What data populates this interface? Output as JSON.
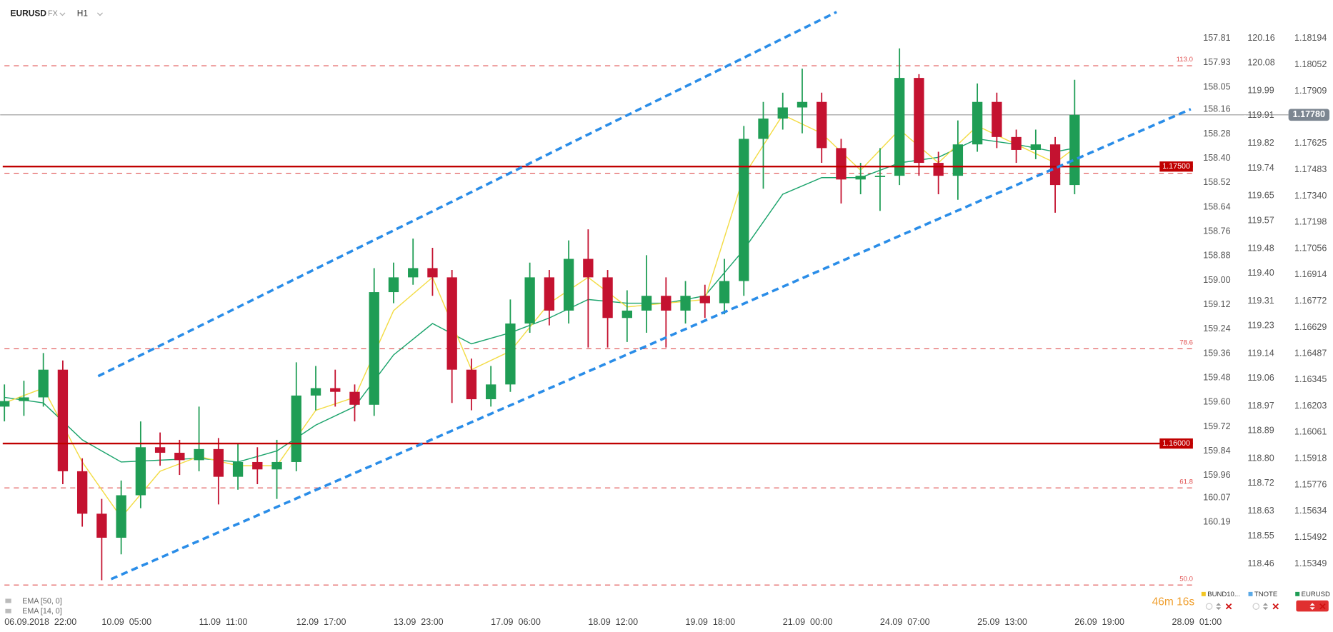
{
  "header": {
    "symbol": "EURUSD",
    "market": "FX",
    "interval": "H1"
  },
  "chart_data": {
    "type": "candlestick",
    "series": [
      {
        "name": "EURUSD",
        "up_color": "#1f9d55",
        "down_color": "#c41230",
        "x": [
          0,
          6,
          12,
          18,
          24,
          30,
          36,
          42,
          48,
          54,
          60,
          66,
          72,
          78,
          84,
          90,
          96,
          102,
          108,
          114,
          120,
          126,
          132,
          138,
          144,
          150,
          156,
          162,
          168,
          174,
          180,
          186,
          192,
          198,
          204,
          210,
          216,
          222,
          228,
          234,
          240,
          246,
          252,
          258,
          264,
          270,
          276,
          282,
          288,
          294,
          300,
          306,
          312,
          318,
          324,
          330
        ],
        "open": [
          1.162,
          1.1623,
          1.1625,
          1.164,
          1.1585,
          1.1562,
          1.1549,
          1.1572,
          1.1598,
          1.1595,
          1.1591,
          1.1597,
          1.1582,
          1.159,
          1.1586,
          1.159,
          1.1626,
          1.163,
          1.1628,
          1.1621,
          1.1682,
          1.169,
          1.1695,
          1.169,
          1.164,
          1.1624,
          1.1632,
          1.1665,
          1.169,
          1.1672,
          1.17,
          1.169,
          1.1668,
          1.1672,
          1.168,
          1.1672,
          1.168,
          1.1676,
          1.1688,
          1.1765,
          1.1776,
          1.1782,
          1.1785,
          1.176,
          1.1743,
          1.1745,
          1.1745,
          1.1798,
          1.1752,
          1.1745,
          1.1762,
          1.1785,
          1.1766,
          1.1759,
          1.1762,
          1.174
        ],
        "high": [
          1.1632,
          1.1634,
          1.1649,
          1.1645,
          1.1592,
          1.157,
          1.158,
          1.1612,
          1.1606,
          1.1602,
          1.162,
          1.1603,
          1.16,
          1.1598,
          1.1602,
          1.1644,
          1.1642,
          1.164,
          1.1632,
          1.1695,
          1.1698,
          1.1711,
          1.1706,
          1.1694,
          1.1646,
          1.1642,
          1.1678,
          1.1698,
          1.1694,
          1.171,
          1.1716,
          1.1694,
          1.1683,
          1.1702,
          1.169,
          1.1688,
          1.1686,
          1.17,
          1.1772,
          1.1785,
          1.179,
          1.1803,
          1.179,
          1.1765,
          1.1752,
          1.176,
          1.1814,
          1.18,
          1.1758,
          1.1775,
          1.1795,
          1.179,
          1.177,
          1.177,
          1.1766,
          1.1797
        ],
        "low": [
          1.1612,
          1.1615,
          1.162,
          1.1578,
          1.1555,
          1.1526,
          1.154,
          1.1565,
          1.1588,
          1.1583,
          1.1585,
          1.1567,
          1.1575,
          1.1578,
          1.157,
          1.1585,
          1.1618,
          1.162,
          1.1612,
          1.1615,
          1.1676,
          1.1686,
          1.168,
          1.1622,
          1.1618,
          1.162,
          1.1628,
          1.166,
          1.1664,
          1.1665,
          1.1652,
          1.1652,
          1.1655,
          1.166,
          1.1652,
          1.1665,
          1.1668,
          1.167,
          1.168,
          1.1738,
          1.177,
          1.1768,
          1.1752,
          1.173,
          1.1735,
          1.1726,
          1.174,
          1.1745,
          1.1735,
          1.1732,
          1.1758,
          1.176,
          1.1752,
          1.1754,
          1.1725,
          1.1735
        ],
        "close": [
          1.1623,
          1.1625,
          1.164,
          1.1585,
          1.1562,
          1.1549,
          1.1572,
          1.1598,
          1.1595,
          1.1591,
          1.1597,
          1.1582,
          1.159,
          1.1586,
          1.159,
          1.1626,
          1.163,
          1.1628,
          1.1621,
          1.1682,
          1.169,
          1.1695,
          1.169,
          1.164,
          1.1624,
          1.1632,
          1.1665,
          1.169,
          1.1672,
          1.17,
          1.169,
          1.1668,
          1.1672,
          1.168,
          1.1672,
          1.168,
          1.1676,
          1.1688,
          1.1765,
          1.1776,
          1.1782,
          1.1785,
          1.176,
          1.1743,
          1.1745,
          1.1745,
          1.1798,
          1.1752,
          1.1745,
          1.1762,
          1.1785,
          1.1766,
          1.1759,
          1.1762,
          1.174,
          1.1778
        ]
      }
    ],
    "overlays": [
      {
        "name": "EMA [50, 0]",
        "color": "#1aa36b",
        "x": [
          0,
          12,
          24,
          36,
          48,
          60,
          72,
          84,
          96,
          108,
          120,
          132,
          144,
          156,
          168,
          180,
          192,
          204,
          216,
          228,
          240,
          252,
          264,
          276,
          288,
          300,
          312,
          324,
          330
        ],
        "values": [
          1.1625,
          1.1622,
          1.1602,
          1.159,
          1.1591,
          1.1592,
          1.159,
          1.1596,
          1.161,
          1.162,
          1.1648,
          1.1665,
          1.1654,
          1.166,
          1.1668,
          1.1678,
          1.1676,
          1.1676,
          1.168,
          1.1705,
          1.1735,
          1.1744,
          1.1744,
          1.1752,
          1.1755,
          1.1765,
          1.1762,
          1.1758,
          1.176
        ]
      },
      {
        "name": "EMA [14, 0]",
        "color": "#f3dc45",
        "x": [
          0,
          12,
          24,
          36,
          48,
          60,
          72,
          84,
          96,
          108,
          120,
          132,
          144,
          156,
          168,
          180,
          192,
          204,
          216,
          228,
          240,
          252,
          264,
          276,
          288,
          300,
          312,
          324,
          330
        ],
        "values": [
          1.1622,
          1.163,
          1.159,
          1.156,
          1.1585,
          1.1593,
          1.1588,
          1.1588,
          1.1618,
          1.1625,
          1.1672,
          1.169,
          1.164,
          1.165,
          1.1676,
          1.169,
          1.1674,
          1.1676,
          1.1678,
          1.1745,
          1.1778,
          1.1768,
          1.1748,
          1.177,
          1.1752,
          1.1772,
          1.1762,
          1.1752,
          1.176
        ]
      }
    ],
    "channels": [
      {
        "color": "#2a8de8",
        "x": [
          28.9,
          256.6
        ],
        "values": [
          1.16365,
          1.18337
        ]
      },
      {
        "color": "#2a8de8",
        "x": [
          32.9,
          365.8
        ],
        "values": [
          1.15266,
          1.17811
        ]
      }
    ],
    "price_levels": [
      {
        "value": 1.175,
        "label": "1.17500"
      },
      {
        "value": 1.16,
        "label": "1.16000"
      }
    ],
    "level_color": "#c00000",
    "fib_levels": [
      {
        "level": "113.0",
        "value": 1.18046
      },
      {
        "level": null,
        "value": 1.17464
      },
      {
        "level": "78.6",
        "value": 1.16513
      },
      {
        "level": "61.8",
        "value": 1.1576
      },
      {
        "level": "50.0",
        "value": 1.15234
      }
    ],
    "last_price": {
      "value": 1.1778,
      "label": "1.17780"
    },
    "xlim": [
      0,
      367
    ],
    "xticks": [
      {
        "value": 0,
        "label": "06.09.2018  22:00"
      },
      {
        "value": 30,
        "label": "10.09  05:00"
      },
      {
        "value": 60,
        "label": "11.09  11:00"
      },
      {
        "value": 90,
        "label": "12.09  17:00"
      },
      {
        "value": 120,
        "label": "13.09  23:00"
      },
      {
        "value": 150,
        "label": "17.09  06:00"
      },
      {
        "value": 180,
        "label": "18.09  12:00"
      },
      {
        "value": 210,
        "label": "19.09  18:00"
      },
      {
        "value": 240,
        "label": "21.09  00:00"
      },
      {
        "value": 270,
        "label": "24.09  07:00"
      },
      {
        "value": 300,
        "label": "25.09  13:00"
      },
      {
        "value": 330,
        "label": "26.09  19:00"
      },
      {
        "value": 360,
        "label": "28.09  01:00"
      }
    ],
    "ylim": [
      1.15215,
      1.18365
    ],
    "yticks": [
      1.18194,
      1.18052,
      1.17909,
      1.17625,
      1.17483,
      {
        "value": 1.1734,
        "label": "1.17340"
      },
      1.17198,
      1.17056,
      1.16914,
      1.16772,
      1.16629,
      1.16487,
      1.16345,
      1.16203,
      1.16061,
      1.15918,
      1.15776,
      1.15634,
      1.15492,
      1.15349
    ],
    "y2lim": [
      160.516,
      157.655
    ],
    "y2ticks": [
      157.81,
      157.93,
      158.05,
      158.16,
      158.28,
      {
        "value": 158.4,
        "label": "158.40"
      },
      158.52,
      158.64,
      158.76,
      158.88,
      {
        "value": 159,
        "label": "159.00"
      },
      159.12,
      159.24,
      159.36,
      159.48,
      {
        "value": 159.6,
        "label": "159.60"
      },
      159.72,
      159.84,
      159.96,
      160.07,
      160.19
    ],
    "y3lim": [
      118.38,
      120.262
    ],
    "y3ticks": [
      120.16,
      120.08,
      119.99,
      119.91,
      119.82,
      119.74,
      119.65,
      119.57,
      119.48,
      {
        "value": 119.4,
        "label": "119.40"
      },
      119.31,
      119.23,
      119.14,
      119.06,
      118.97,
      118.89,
      {
        "value": 118.8,
        "label": "118.80"
      },
      118.72,
      118.63,
      118.55,
      118.46
    ]
  },
  "footer": {
    "timer": "46m 16s",
    "instruments": [
      {
        "name": "BUND10...",
        "color": "#f3c623"
      },
      {
        "name": "TNOTE",
        "color": "#5aa9e6"
      },
      {
        "name": "EURUSD",
        "color": "#1f9d55"
      }
    ]
  }
}
